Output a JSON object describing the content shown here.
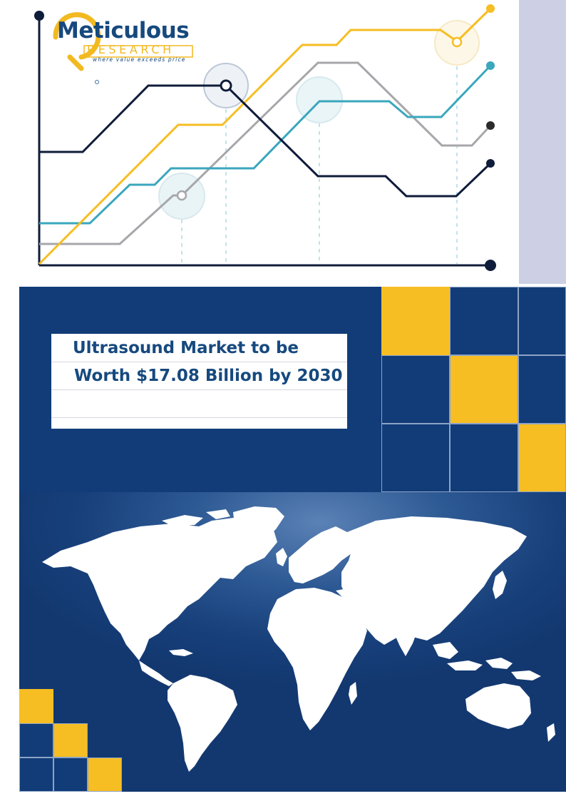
{
  "brand": {
    "name": "Meticulous",
    "sub": "RESEARCH",
    "tagline": "where value exceeds price"
  },
  "report": {
    "title_line1": "Ultrasound Market to be",
    "title_line2": "Worth $17.08 Billion by 2030"
  },
  "colors": {
    "navy": "#113c78",
    "gold": "#f6be23",
    "teal": "#3aa7bd",
    "gray": "#a7a7ab",
    "dark_line": "#0f1c3a",
    "side_strip": "#cdd0e4"
  },
  "icons": {
    "logo_mark": "magnifier-icon",
    "decorative_chart": "line-chart-illustration",
    "world_map": "world-map-icon"
  }
}
